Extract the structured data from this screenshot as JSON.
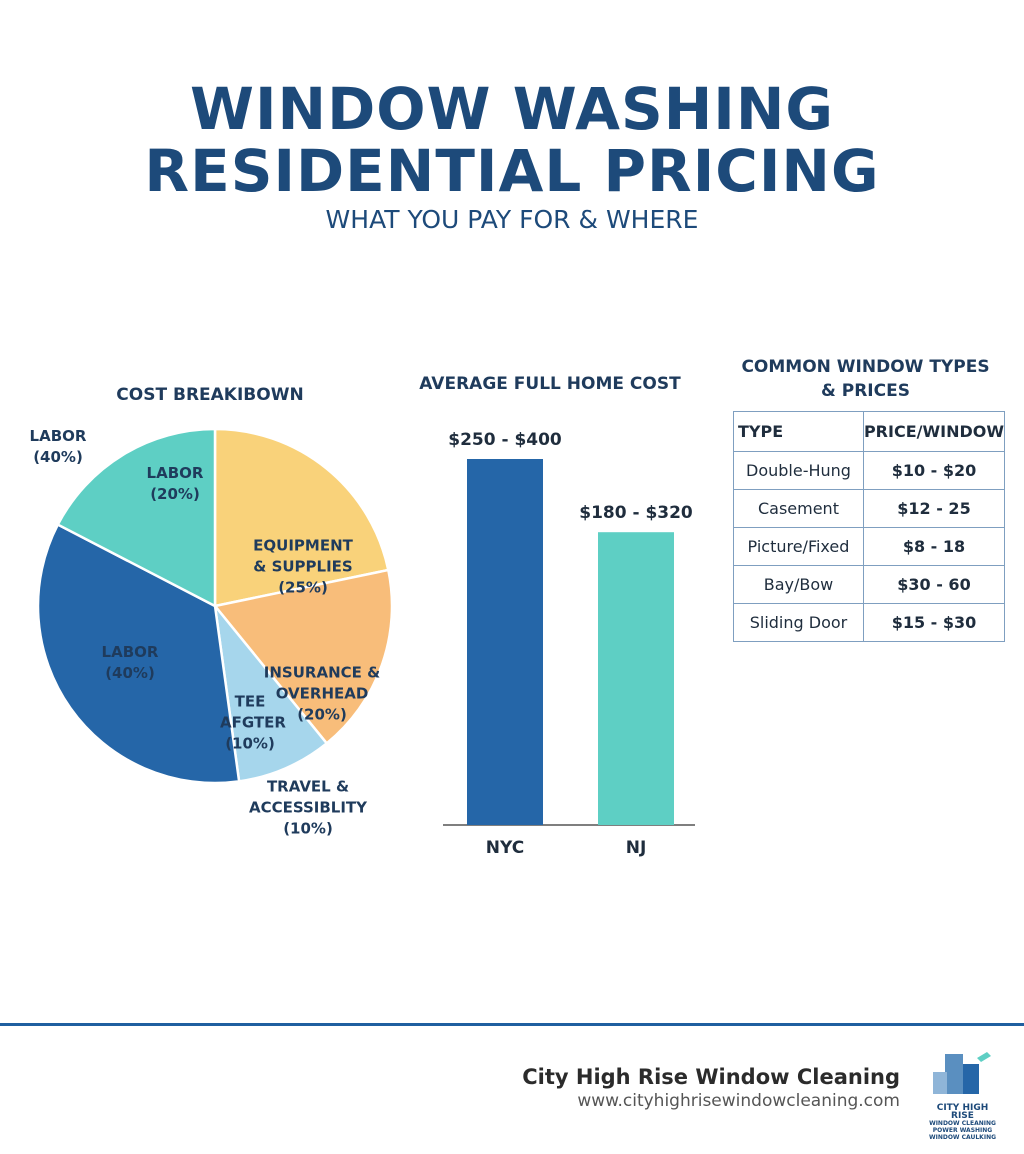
{
  "header": {
    "title_lines": [
      "WINDOW WASHING",
      "RESIDENTIAL PRICING"
    ],
    "subtitle": "WHAT YOU PAY FOR & WHERE"
  },
  "chart_data": [
    {
      "type": "pie",
      "title": "COST BREAKIBOWN",
      "categories": [
        "EQUIPMENT & SUPPLIES",
        "INSURANCE & OVERHEAD",
        "TEE AFGTER",
        "LABOR",
        "LABOR"
      ],
      "values": [
        25,
        20,
        10,
        40,
        20
      ],
      "value_labels": [
        "(25%)",
        "(20%)",
        "(10%)",
        "(40%)",
        "(20%)"
      ],
      "colors": [
        "#f9d27a",
        "#f8bd7a",
        "#a6d6ec",
        "#2566a8",
        "#5ecfc4"
      ],
      "annotations": [
        "LABOR (40%)",
        "TRAVEL & ACCESSIBLITY (10%)"
      ]
    },
    {
      "type": "bar",
      "title": "AVERAGE FULL HOME COST",
      "categories": [
        "NYC",
        "NJ"
      ],
      "low": [
        250,
        180
      ],
      "high": [
        400,
        320
      ],
      "value_labels": [
        "$250 - $400",
        "$180 - $320"
      ],
      "colors": [
        "#2566a8",
        "#5ecfc4"
      ]
    }
  ],
  "table": {
    "title": "COMMON WINDOW TYPES & PRICES",
    "columns": [
      "TYPE",
      "PRICE/WINDOW"
    ],
    "rows": [
      [
        "Double-Hung",
        "$10 - $20"
      ],
      [
        "Casement",
        "$12 - 25"
      ],
      [
        "Picture/Fixed",
        "$8 - 18"
      ],
      [
        "Bay/Bow",
        "$30 - 60"
      ],
      [
        "Sliding Door",
        "$15 - $30"
      ]
    ]
  },
  "footer": {
    "company": "City High Rise Window Cleaning",
    "url": "www.cityhighrisewindowcleaning.com",
    "logo_lines": [
      "CITY HIGH RISE",
      "WINDOW CLEANING",
      "POWER WASHING",
      "WINDOW CAULKING"
    ]
  }
}
